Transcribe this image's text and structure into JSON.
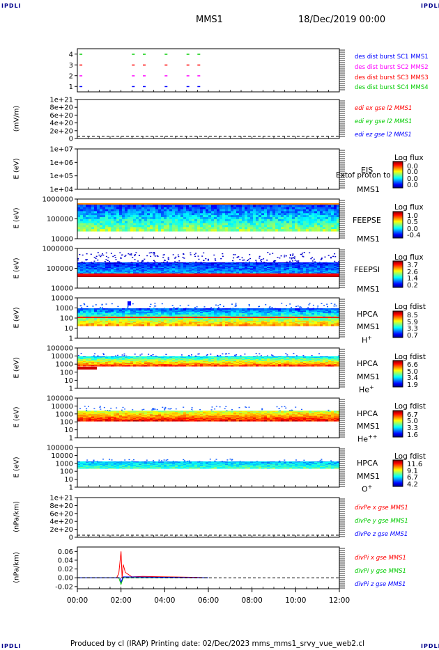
{
  "header": {
    "corner_tl": "IPDLI",
    "corner_tr": "IPDLI",
    "corner_bl": "IPDLI",
    "corner_br": "IPDLI",
    "title_center": "MMS1",
    "title_right": "18/Dec/2019 00:00"
  },
  "footer": {
    "text": "Produced by cl (IRAP)   Printing date: 02/Dec/2023   mms_mms1_srvy_vue_web2.cl"
  },
  "colors": {
    "red": "#ff0000",
    "magenta": "#ff00ff",
    "green": "#00cc00",
    "blue": "#0000ff",
    "black": "#000000"
  },
  "chart_data": [
    {
      "type": "scatter",
      "panel": "des-dist-burst",
      "yticks": [
        "1",
        "2",
        "3",
        "4"
      ],
      "ylim": [
        0.5,
        4.5
      ],
      "series": [
        {
          "name": "des dist burst SC1 MMS1",
          "color": "#0000ff",
          "y": 1,
          "x": [
            0.1,
            2.5,
            3.0,
            4.0,
            5.0,
            5.5
          ]
        },
        {
          "name": "des dist burst SC2 MMS2",
          "color": "#ff00ff",
          "y": 2,
          "x": [
            0.1,
            2.5,
            3.0,
            4.0,
            5.0,
            5.5
          ]
        },
        {
          "name": "des dist burst SC3 MMS3",
          "color": "#ff0000",
          "y": 3,
          "x": [
            0.1,
            2.5,
            3.0,
            4.0,
            5.0,
            5.5
          ]
        },
        {
          "name": "des dist burst SC4 MMS4",
          "color": "#00cc00",
          "y": 4,
          "x": [
            0.1,
            2.5,
            3.0,
            4.0,
            5.0,
            5.5
          ]
        }
      ]
    },
    {
      "type": "line",
      "panel": "edi-e",
      "ylabel": "(mV/m)",
      "yticks": [
        "0",
        "2e+20",
        "4e+20",
        "6e+20",
        "8e+20",
        "1e+21"
      ],
      "ylim": [
        0,
        1e+21
      ],
      "series": [
        {
          "name": "edi ex gse l2 MMS1",
          "color": "#ff0000"
        },
        {
          "name": "edi ey gse l2 MMS1",
          "color": "#00cc00"
        },
        {
          "name": "edi ez gse l2 MMS1",
          "color": "#0000ff"
        }
      ]
    },
    {
      "type": "heatmap",
      "panel": "eis",
      "ylabel": "E (eV)",
      "yticks": [
        "1e+04",
        "1e+05",
        "1e+06",
        "1e+07"
      ],
      "instrument": [
        "EIS",
        "MMS1"
      ],
      "overlay_text": "Extof proton to",
      "colorbar": {
        "label": "Log flux",
        "values": [
          "0.0",
          "0.0",
          "0.0",
          "0.0"
        ]
      }
    },
    {
      "type": "heatmap",
      "panel": "feepse",
      "ylabel": "E (eV)",
      "yticks": [
        "10000",
        "100000",
        "1000000"
      ],
      "instrument": [
        "FEEPSE",
        "MMS1"
      ],
      "colorbar": {
        "label": "Log flux",
        "values": [
          "1.0",
          "0.5",
          "0.0",
          "-0.4"
        ]
      }
    },
    {
      "type": "heatmap",
      "panel": "feepsi",
      "ylabel": "E (eV)",
      "yticks": [
        "10000",
        "100000",
        "1000000"
      ],
      "instrument": [
        "FEEPSI",
        "MMS1"
      ],
      "colorbar": {
        "label": "Log flux",
        "values": [
          "3.7",
          "2.6",
          "1.4",
          "0.2"
        ]
      }
    },
    {
      "type": "heatmap",
      "panel": "hpca-h",
      "ylabel": "E (eV)",
      "yticks": [
        "1",
        "10",
        "100",
        "1000",
        "10000"
      ],
      "instrument": [
        "HPCA",
        "MMS1",
        "H",
        "+"
      ],
      "colorbar": {
        "label": "Log fdist",
        "values": [
          "8.5",
          "5.9",
          "3.3",
          "0.7"
        ]
      }
    },
    {
      "type": "heatmap",
      "panel": "hpca-he",
      "ylabel": "E (eV)",
      "yticks": [
        "1",
        "10",
        "100",
        "1000",
        "10000",
        "100000"
      ],
      "instrument": [
        "HPCA",
        "MMS1",
        "He",
        "+"
      ],
      "colorbar": {
        "label": "Log fdist",
        "values": [
          "6.6",
          "5.0",
          "3.4",
          "1.9"
        ]
      }
    },
    {
      "type": "heatmap",
      "panel": "hpca-hepp",
      "ylabel": "E (eV)",
      "yticks": [
        "1",
        "10",
        "100",
        "1000",
        "10000",
        "100000"
      ],
      "instrument": [
        "HPCA",
        "MMS1",
        "He",
        "++"
      ],
      "colorbar": {
        "label": "Log fdist",
        "values": [
          "6.7",
          "5.0",
          "3.3",
          "1.6"
        ]
      }
    },
    {
      "type": "heatmap",
      "panel": "hpca-o",
      "ylabel": "E (eV)",
      "yticks": [
        "1",
        "10",
        "100",
        "1000",
        "10000",
        "100000"
      ],
      "instrument": [
        "HPCA",
        "MMS1",
        "O",
        "+"
      ],
      "colorbar": {
        "label": "Log fdist",
        "values": [
          "11.6",
          "9.1",
          "6.7",
          "4.2"
        ]
      }
    },
    {
      "type": "line",
      "panel": "divpe",
      "ylabel": "(nPa/km)",
      "yticks": [
        "0",
        "2e+20",
        "4e+20",
        "6e+20",
        "8e+20",
        "1e+21"
      ],
      "ylim": [
        0,
        1e+21
      ],
      "series": [
        {
          "name": "divPe x gse MMS1",
          "color": "#ff0000"
        },
        {
          "name": "divPe y gse MMS1",
          "color": "#00cc00"
        },
        {
          "name": "divPe z gse MMS1",
          "color": "#0000ff"
        }
      ]
    },
    {
      "type": "line",
      "panel": "divpi",
      "ylabel": "(nPa/km)",
      "yticks": [
        "-0.02",
        "0.00",
        "0.02",
        "0.04",
        "0.06"
      ],
      "ylim": [
        -0.025,
        0.07
      ],
      "series": [
        {
          "name": "divPi x gse MMS1",
          "color": "#ff0000"
        },
        {
          "name": "divPi y gse MMS1",
          "color": "#00cc00"
        },
        {
          "name": "divPi z gse MMS1",
          "color": "#0000ff"
        }
      ],
      "peak": {
        "time": "02:00",
        "x": 0.06
      }
    }
  ],
  "xaxis": {
    "ticks": [
      "00:00",
      "02:00",
      "04:00",
      "06:00",
      "08:00",
      "10:00",
      "12:00"
    ],
    "range_hours": [
      0,
      12
    ]
  }
}
